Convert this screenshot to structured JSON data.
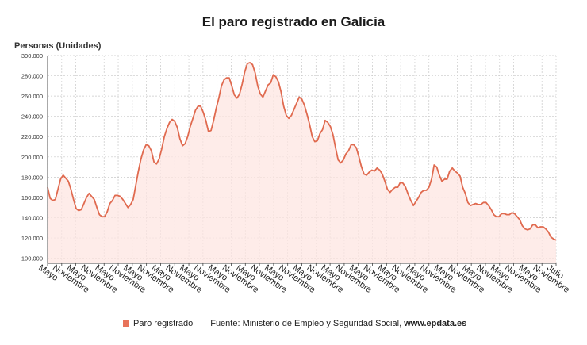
{
  "page": {
    "title": "El paro registrado en Galicia",
    "source_prefix": "Fuente: Ministerio de Empleo y Seguridad Social,",
    "source_site": "www.epdata.es"
  },
  "colors": {
    "line": "#e06a4f",
    "fill": "#fde6e1",
    "grid": "#c8c8c8",
    "axis": "#444444"
  },
  "chart_data": {
    "type": "area",
    "title": "El paro registrado en Galicia",
    "ylabel": "Personas (Unidades)",
    "xlabel": "",
    "ylim": [
      95000,
      300000
    ],
    "yticks": [
      100000,
      120000,
      140000,
      160000,
      180000,
      200000,
      220000,
      240000,
      260000,
      280000,
      300000
    ],
    "ytick_labels": [
      "100.000",
      "120.000",
      "140.000",
      "160.000",
      "180.000",
      "200.000",
      "220.000",
      "240.000",
      "260.000",
      "280.000",
      "300.000"
    ],
    "xtick_labels": [
      "Mayo",
      "Noviembre",
      "Mayo",
      "Noviembre",
      "Mayo",
      "Noviembre",
      "Mayo",
      "Noviembre",
      "Mayo",
      "Noviembre",
      "Mayo",
      "Noviembre",
      "Mayo",
      "Noviembre",
      "Mayo",
      "Noviembre",
      "Mayo",
      "Noviembre",
      "Mayo",
      "Noviembre",
      "Mayo",
      "Noviembre",
      "Mayo",
      "Noviembre",
      "Mayo",
      "Noviembre",
      "Mayo",
      "Noviembre",
      "Mayo",
      "Noviembre",
      "Mayo",
      "Noviembre",
      "Mayo",
      "Noviembre",
      "Mayo",
      "Noviembre",
      "Julio"
    ],
    "legend": [
      {
        "name": "Paro registrado",
        "color": "#e8735a"
      }
    ],
    "series": [
      {
        "name": "Paro registrado",
        "values": [
          170000,
          159000,
          157000,
          158000,
          168000,
          178000,
          182000,
          179000,
          176000,
          168000,
          158000,
          149000,
          147000,
          148000,
          154000,
          160000,
          164000,
          161000,
          158000,
          150000,
          143000,
          141000,
          141000,
          146000,
          154000,
          157000,
          162000,
          162000,
          161000,
          158000,
          154000,
          150000,
          153000,
          158000,
          172000,
          186000,
          198000,
          207000,
          212000,
          211000,
          206000,
          195000,
          193000,
          198000,
          208000,
          220000,
          228000,
          234000,
          237000,
          235000,
          229000,
          218000,
          211000,
          213000,
          220000,
          230000,
          238000,
          246000,
          250000,
          250000,
          244000,
          236000,
          225000,
          226000,
          236000,
          248000,
          258000,
          270000,
          276000,
          278000,
          278000,
          270000,
          261000,
          258000,
          262000,
          272000,
          284000,
          292000,
          293000,
          291000,
          283000,
          270000,
          262000,
          259000,
          265000,
          271000,
          273000,
          281000,
          279000,
          274000,
          264000,
          250000,
          241000,
          238000,
          241000,
          247000,
          253000,
          259000,
          257000,
          251000,
          242000,
          232000,
          220000,
          215000,
          216000,
          223000,
          227000,
          236000,
          234000,
          230000,
          222000,
          209000,
          197000,
          194000,
          197000,
          203000,
          206000,
          212000,
          212000,
          209000,
          200000,
          190000,
          183000,
          182000,
          185000,
          187000,
          186000,
          189000,
          187000,
          183000,
          176000,
          168000,
          165000,
          168000,
          170000,
          170000,
          175000,
          174000,
          170000,
          163000,
          157000,
          152000,
          156000,
          160000,
          165000,
          167000,
          167000,
          170000,
          178000,
          192000,
          190000,
          182000,
          176000,
          178000,
          178000,
          186000,
          189000,
          186000,
          184000,
          181000,
          170000,
          164000,
          155000,
          152000,
          153000,
          154000,
          153000,
          153000,
          155000,
          155000,
          152000,
          148000,
          143000,
          141000,
          141000,
          144000,
          144000,
          143000,
          143000,
          145000,
          144000,
          141000,
          138000,
          132000,
          129000,
          128000,
          129000,
          133000,
          133000,
          130000,
          131000,
          131000,
          129000,
          126000,
          121000,
          119000,
          118000
        ]
      }
    ]
  }
}
